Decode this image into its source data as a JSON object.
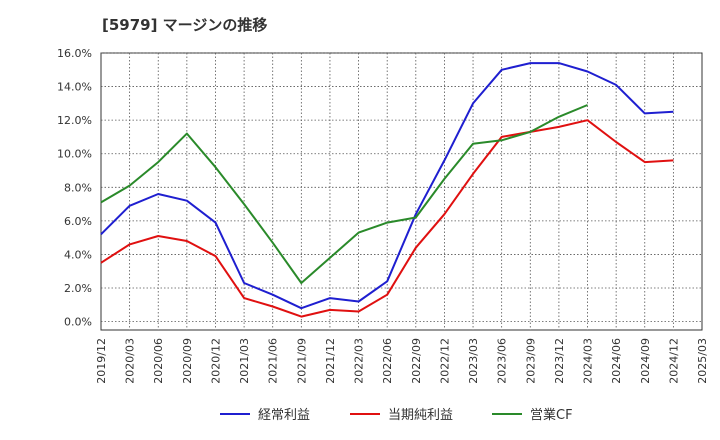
{
  "chart_data": {
    "type": "line",
    "title": "[5979]  マージンの推移",
    "xlabel": "",
    "ylabel": "",
    "ylim": [
      -0.5,
      16.0
    ],
    "yticks": [
      0,
      2,
      4,
      6,
      8,
      10,
      12,
      14,
      16
    ],
    "ytick_labels": [
      "0.0%",
      "2.0%",
      "4.0%",
      "6.0%",
      "8.0%",
      "10.0%",
      "12.0%",
      "14.0%",
      "16.0%"
    ],
    "categories": [
      "2019/12",
      "2020/03",
      "2020/06",
      "2020/09",
      "2020/12",
      "2021/03",
      "2021/06",
      "2021/09",
      "2021/12",
      "2022/03",
      "2022/06",
      "2022/09",
      "2022/12",
      "2023/03",
      "2023/06",
      "2023/09",
      "2023/12",
      "2024/03",
      "2024/06",
      "2024/09",
      "2024/12",
      "2025/03"
    ],
    "grid": true,
    "legend_position": "bottom",
    "series": [
      {
        "name": "経常利益",
        "color": "#1f1fd0",
        "values": [
          5.2,
          6.9,
          7.6,
          7.2,
          5.9,
          2.3,
          1.6,
          0.8,
          1.4,
          1.2,
          2.4,
          6.4,
          9.6,
          13.0,
          15.0,
          15.4,
          15.4,
          14.9,
          14.1,
          12.4,
          12.5,
          null
        ]
      },
      {
        "name": "当期純利益",
        "color": "#e01010",
        "values": [
          3.5,
          4.6,
          5.1,
          4.8,
          3.9,
          1.4,
          0.9,
          0.3,
          0.7,
          0.6,
          1.6,
          4.4,
          6.4,
          8.8,
          11.0,
          11.3,
          11.6,
          12.0,
          10.7,
          9.5,
          9.6,
          null
        ]
      },
      {
        "name": "営業CF",
        "color": "#2a8a2a",
        "values": [
          7.1,
          8.1,
          9.5,
          11.2,
          9.2,
          7.0,
          4.7,
          2.3,
          3.8,
          5.3,
          5.9,
          6.2,
          8.5,
          10.6,
          10.8,
          11.3,
          12.2,
          12.9,
          null,
          null,
          null,
          null
        ]
      }
    ]
  }
}
